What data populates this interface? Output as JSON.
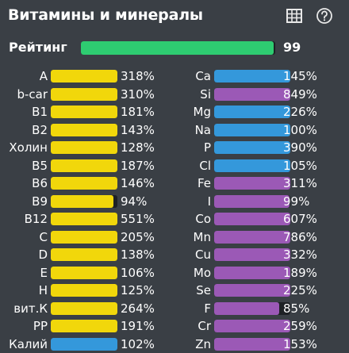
{
  "header": {
    "title": "Витамины и минералы",
    "table_icon": "table-icon",
    "help_icon": "help-circle-icon"
  },
  "rating": {
    "label": "Рейтинг",
    "value": "99",
    "fill": 0.99,
    "color": "#2ecc71"
  },
  "colors": {
    "yellow": "#f1d70b",
    "blue": "#3498db",
    "purple": "#9b59b6",
    "track": "#1e2125"
  },
  "left": [
    {
      "label": "A",
      "value": "318%",
      "fill": 1,
      "color": "#f1d70b"
    },
    {
      "label": "b-car",
      "value": "310%",
      "fill": 1,
      "color": "#f1d70b"
    },
    {
      "label": "B1",
      "value": "181%",
      "fill": 1,
      "color": "#f1d70b"
    },
    {
      "label": "B2",
      "value": "143%",
      "fill": 1,
      "color": "#f1d70b"
    },
    {
      "label": "Холин",
      "value": "128%",
      "fill": 1,
      "color": "#f1d70b"
    },
    {
      "label": "B5",
      "value": "187%",
      "fill": 1,
      "color": "#f1d70b"
    },
    {
      "label": "B6",
      "value": "146%",
      "fill": 1,
      "color": "#f1d70b"
    },
    {
      "label": "B9",
      "value": "94%",
      "fill": 0.94,
      "color": "#f1d70b"
    },
    {
      "label": "B12",
      "value": "551%",
      "fill": 1,
      "color": "#f1d70b"
    },
    {
      "label": "C",
      "value": "205%",
      "fill": 1,
      "color": "#f1d70b"
    },
    {
      "label": "D",
      "value": "138%",
      "fill": 1,
      "color": "#f1d70b"
    },
    {
      "label": "E",
      "value": "106%",
      "fill": 1,
      "color": "#f1d70b"
    },
    {
      "label": "H",
      "value": "125%",
      "fill": 1,
      "color": "#f1d70b"
    },
    {
      "label": "вит.К",
      "value": "264%",
      "fill": 1,
      "color": "#f1d70b"
    },
    {
      "label": "PP",
      "value": "191%",
      "fill": 1,
      "color": "#f1d70b"
    },
    {
      "label": "Калий",
      "value": "102%",
      "fill": 1,
      "color": "#3498db"
    }
  ],
  "right": [
    {
      "label": "Ca",
      "value": "145%",
      "fill": 1,
      "color": "#3498db"
    },
    {
      "label": "Si",
      "value": "849%",
      "fill": 1,
      "color": "#9b59b6"
    },
    {
      "label": "Mg",
      "value": "226%",
      "fill": 1,
      "color": "#3498db"
    },
    {
      "label": "Na",
      "value": "100%",
      "fill": 1,
      "color": "#3498db"
    },
    {
      "label": "P",
      "value": "390%",
      "fill": 1,
      "color": "#3498db"
    },
    {
      "label": "Cl",
      "value": "105%",
      "fill": 1,
      "color": "#3498db"
    },
    {
      "label": "Fe",
      "value": "311%",
      "fill": 1,
      "color": "#9b59b6"
    },
    {
      "label": "I",
      "value": "99%",
      "fill": 0.99,
      "color": "#9b59b6"
    },
    {
      "label": "Co",
      "value": "607%",
      "fill": 1,
      "color": "#9b59b6"
    },
    {
      "label": "Mn",
      "value": "786%",
      "fill": 1,
      "color": "#9b59b6"
    },
    {
      "label": "Cu",
      "value": "332%",
      "fill": 1,
      "color": "#9b59b6"
    },
    {
      "label": "Mo",
      "value": "189%",
      "fill": 1,
      "color": "#9b59b6"
    },
    {
      "label": "Se",
      "value": "225%",
      "fill": 1,
      "color": "#9b59b6"
    },
    {
      "label": "F",
      "value": "85%",
      "fill": 0.85,
      "color": "#9b59b6"
    },
    {
      "label": "Cr",
      "value": "259%",
      "fill": 1,
      "color": "#9b59b6"
    },
    {
      "label": "Zn",
      "value": "153%",
      "fill": 1,
      "color": "#9b59b6"
    }
  ]
}
